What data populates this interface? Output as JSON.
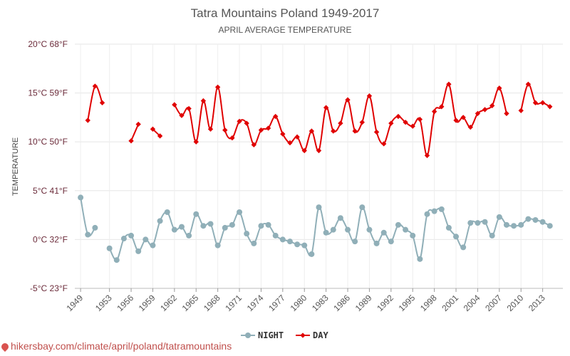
{
  "chart_data": {
    "type": "line",
    "title": "Tatra Mountains Poland 1949-2017",
    "subtitle": "APRIL AVERAGE TEMPERATURE",
    "ylabel": "TEMPERATURE",
    "ylim": [
      -5,
      20
    ],
    "y_ticks": [
      {
        "value": -5,
        "label": "-5°C 23°F"
      },
      {
        "value": 0,
        "label": "0°C 32°F"
      },
      {
        "value": 5,
        "label": "5°C 41°F"
      },
      {
        "value": 10,
        "label": "10°C 50°F"
      },
      {
        "value": 15,
        "label": "15°C 59°F"
      },
      {
        "value": 20,
        "label": "20°C 68°F"
      }
    ],
    "x_ticks": [
      "1949",
      "1953",
      "1956",
      "1959",
      "1962",
      "1965",
      "1968",
      "1971",
      "1974",
      "1977",
      "1980",
      "1983",
      "1986",
      "1989",
      "1992",
      "1995",
      "1998",
      "2001",
      "2004",
      "2007",
      "2010",
      "2013"
    ],
    "x": [
      1949,
      1950,
      1951,
      1952,
      1953,
      1954,
      1955,
      1956,
      1957,
      1958,
      1959,
      1960,
      1961,
      1962,
      1963,
      1964,
      1965,
      1966,
      1967,
      1968,
      1969,
      1970,
      1971,
      1972,
      1973,
      1974,
      1975,
      1976,
      1977,
      1978,
      1979,
      1980,
      1981,
      1982,
      1983,
      1984,
      1985,
      1986,
      1987,
      1988,
      1989,
      1990,
      1991,
      1992,
      1993,
      1994,
      1995,
      1996,
      1997,
      1998,
      1999,
      2000,
      2001,
      2002,
      2003,
      2004,
      2005,
      2006,
      2007,
      2008,
      2009,
      2010,
      2011,
      2012,
      2013,
      2014,
      2015
    ],
    "grid": true,
    "legend_position": "bottom",
    "series": [
      {
        "name": "NIGHT",
        "color": "#90afb8",
        "values": [
          4.3,
          0.5,
          1.2,
          null,
          -0.9,
          -2.1,
          0.1,
          0.4,
          -1.2,
          0.0,
          -0.6,
          1.9,
          2.8,
          1.0,
          1.3,
          0.4,
          2.6,
          1.4,
          1.6,
          -0.6,
          1.2,
          1.5,
          2.8,
          0.6,
          -0.4,
          1.4,
          1.5,
          0.4,
          0.0,
          -0.2,
          -0.5,
          -0.6,
          -1.5,
          3.3,
          0.7,
          1.0,
          2.2,
          1.0,
          -0.2,
          3.3,
          1.0,
          -0.4,
          0.7,
          -0.2,
          1.5,
          1.0,
          0.4,
          -2.0,
          2.6,
          2.9,
          3.1,
          1.2,
          0.3,
          -0.8,
          1.7,
          1.7,
          1.8,
          0.4,
          2.3,
          1.5,
          1.4,
          1.5,
          2.1,
          2.0,
          1.8,
          1.4,
          null
        ]
      },
      {
        "name": "DAY",
        "color": "#e00000",
        "values": [
          null,
          12.2,
          15.7,
          14.0,
          null,
          null,
          null,
          10.1,
          11.8,
          null,
          11.3,
          10.6,
          null,
          13.8,
          12.7,
          13.4,
          10.0,
          14.2,
          11.3,
          15.6,
          11.2,
          10.4,
          12.1,
          11.9,
          9.7,
          11.2,
          11.4,
          12.6,
          10.8,
          9.9,
          10.5,
          9.1,
          11.1,
          9.1,
          13.5,
          11.1,
          11.9,
          14.3,
          11.1,
          12.0,
          14.7,
          11.0,
          9.8,
          11.9,
          12.6,
          12.0,
          11.6,
          12.3,
          8.6,
          13.1,
          13.6,
          15.9,
          12.2,
          12.5,
          11.5,
          12.9,
          13.3,
          13.7,
          15.5,
          12.9,
          null,
          13.2,
          15.9,
          14.0,
          14.0,
          13.6,
          null
        ]
      }
    ]
  },
  "source": {
    "text": "hikersbay.com/climate/april/poland/tatramountains"
  }
}
